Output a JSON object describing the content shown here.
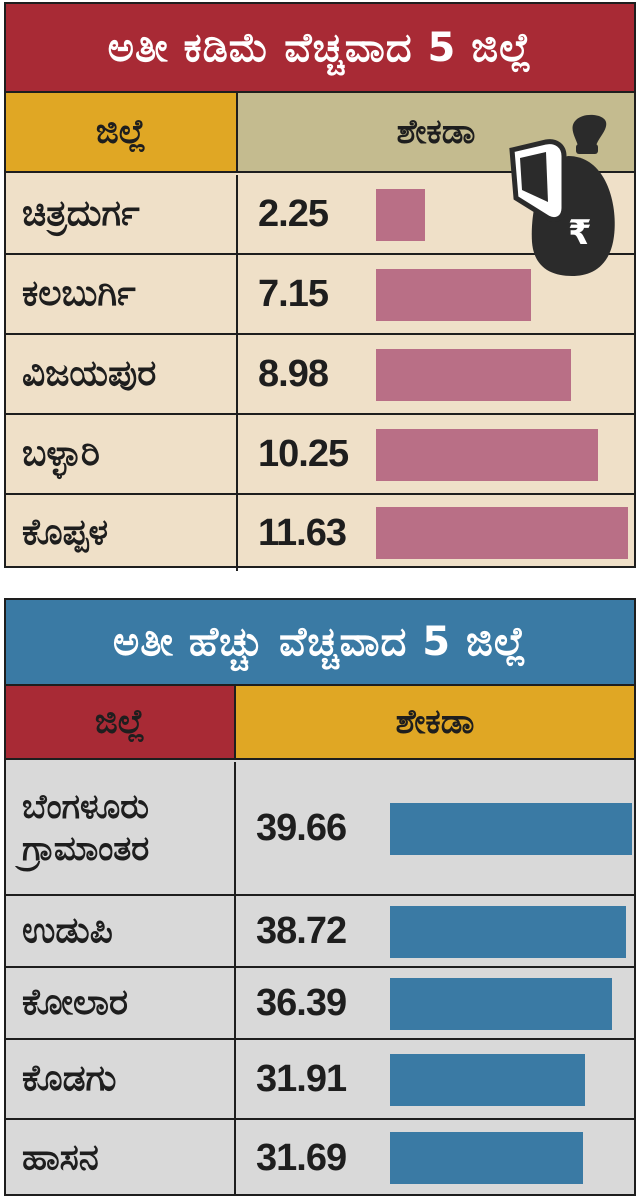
{
  "low": {
    "title": "ಅತೀ ಕಡಿಮೆ ವೆಚ್ಚವಾದ 5 ಜಿಲ್ಲೆ",
    "header_district": "ಜಿಲ್ಲೆ",
    "header_percent": "ಶೇಕಡಾ",
    "header_district_bg": "#e0a724",
    "header_percent_bg": "#c4bb8f",
    "bar_color": "#b96f86",
    "rows": [
      {
        "district": "ಚಿತ್ರದುರ್ಗ",
        "value": "2.25"
      },
      {
        "district": "ಕಲಬುರ್ಗಿ",
        "value": "7.15"
      },
      {
        "district": "ವಿಜಯಪುರ",
        "value": "8.98"
      },
      {
        "district": "ಬಳ್ಳಾರಿ",
        "value": "10.25"
      },
      {
        "district": "ಕೊಪ್ಪಳ",
        "value": "11.63"
      }
    ],
    "icon": "money-bag-rupee-icon"
  },
  "high": {
    "title": "ಅತೀ ಹೆಚ್ಚು ವೆಚ್ಚವಾದ 5 ಜಿಲ್ಲೆ",
    "header_district": "ಜಿಲ್ಲೆ",
    "header_percent": "ಶೇಕಡಾ",
    "header_district_bg": "#a82a35",
    "header_percent_bg": "#e0a724",
    "bar_color": "#3a7aa4",
    "rows": [
      {
        "district": "ಬೆಂಗಳೂರು ಗ್ರಾಮಾಂತರ",
        "value": "39.66"
      },
      {
        "district": "ಉಡುಪಿ",
        "value": "38.72"
      },
      {
        "district": "ಕೋಲಾರ",
        "value": "36.39"
      },
      {
        "district": "ಕೊಡಗು",
        "value": "31.91"
      },
      {
        "district": "ಹಾಸನ",
        "value": "31.69"
      }
    ]
  },
  "chart_data": [
    {
      "type": "bar",
      "title": "ಅತೀ ಕಡಿಮೆ ವೆಚ್ಚವಾದ 5 ಜಿಲ್ಲೆ",
      "categories": [
        "ಚಿತ್ರದುರ್ಗ",
        "ಕಲಬುರ್ಗಿ",
        "ವಿಜಯಪುರ",
        "ಬಳ್ಳಾರಿ",
        "ಕೊಪ್ಪಳ"
      ],
      "values": [
        2.25,
        7.15,
        8.98,
        10.25,
        11.63
      ],
      "xlabel": "ಜಿಲ್ಲೆ",
      "ylabel": "ಶೇಕಡಾ",
      "orientation": "horizontal",
      "color": "#b96f86"
    },
    {
      "type": "bar",
      "title": "ಅತೀ ಹೆಚ್ಚು ವೆಚ್ಚವಾದ 5 ಜಿಲ್ಲೆ",
      "categories": [
        "ಬೆಂಗಳೂರು ಗ್ರಾಮಾಂತರ",
        "ಉಡುಪಿ",
        "ಕೋಲಾರ",
        "ಕೊಡಗು",
        "ಹಾಸನ"
      ],
      "values": [
        39.66,
        38.72,
        36.39,
        31.91,
        31.69
      ],
      "xlabel": "ಜಿಲ್ಲೆ",
      "ylabel": "ಶೇಕಡಾ",
      "orientation": "horizontal",
      "color": "#3a7aa4"
    }
  ]
}
